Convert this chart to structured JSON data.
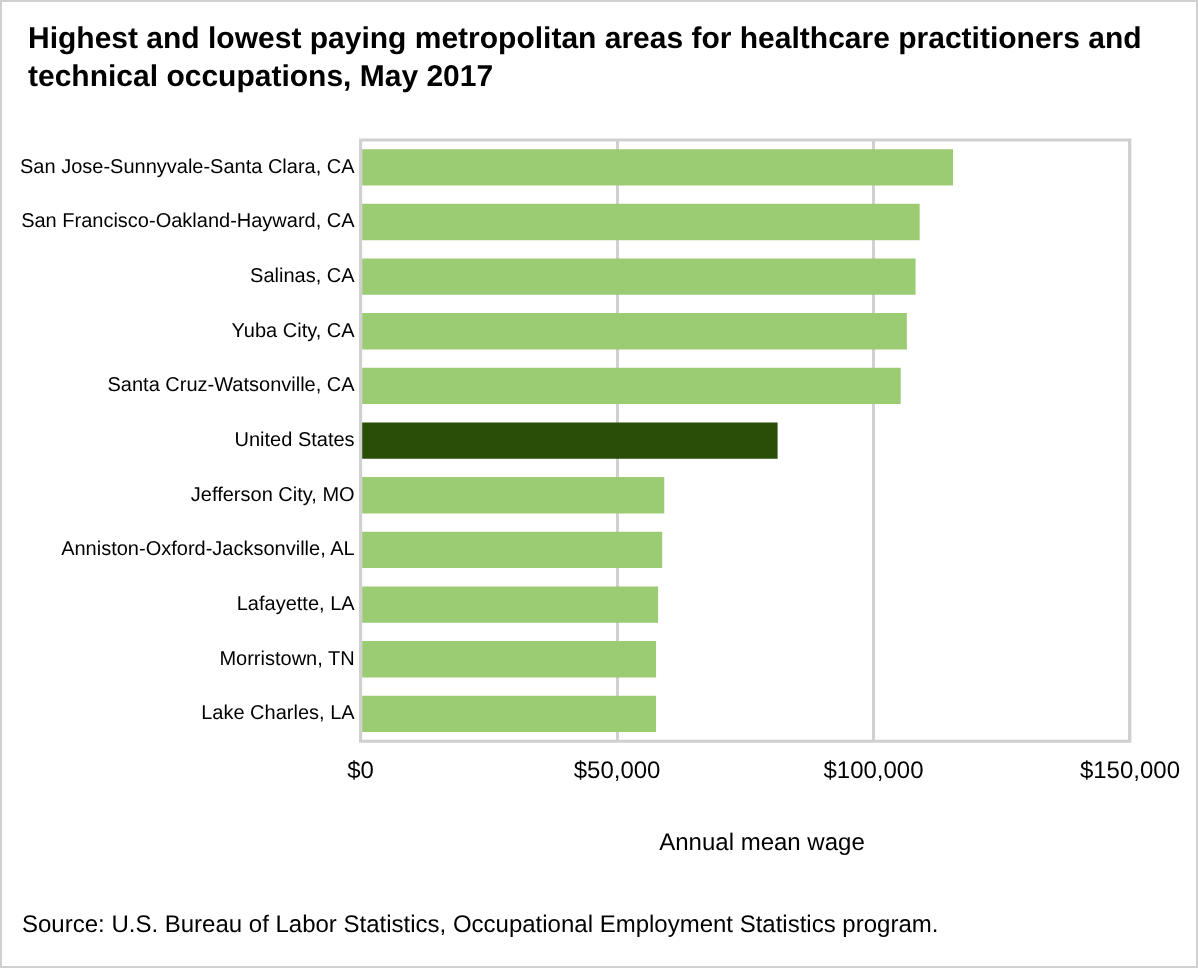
{
  "chart_data": {
    "type": "bar",
    "orientation": "horizontal",
    "title": "Highest and lowest paying metropolitan areas for healthcare practitioners and technical occupations, May 2017",
    "categories": [
      "San Jose-Sunnyvale-Santa Clara, CA",
      "San Francisco-Oakland-Hayward, CA",
      "Salinas, CA",
      "Yuba City, CA",
      "Santa Cruz-Watsonville, CA",
      "United States",
      "Jefferson City, MO",
      "Anniston-Oxford-Jacksonville, AL",
      "Lafayette, LA",
      "Morristown, TN",
      "Lake Charles, LA"
    ],
    "values": [
      115500,
      109000,
      108200,
      106500,
      105300,
      81300,
      59200,
      58800,
      58000,
      57600,
      57600
    ],
    "colors": [
      "#9bcb73",
      "#9bcb73",
      "#9bcb73",
      "#9bcb73",
      "#9bcb73",
      "#2a4d07",
      "#9bcb73",
      "#9bcb73",
      "#9bcb73",
      "#9bcb73",
      "#9bcb73"
    ],
    "xlim": [
      0,
      150000
    ],
    "xticks": [
      {
        "value": 0,
        "label": "$0"
      },
      {
        "value": 50000,
        "label": "$50,000"
      },
      {
        "value": 100000,
        "label": "$100,000"
      },
      {
        "value": 150000,
        "label": "$150,000"
      }
    ],
    "xlabel": "Annual mean wage",
    "grid": "x",
    "legend": false,
    "annotations": [
      "Source: U.S. Bureau of Labor Statistics, Occupational Employment Statistics program."
    ]
  }
}
